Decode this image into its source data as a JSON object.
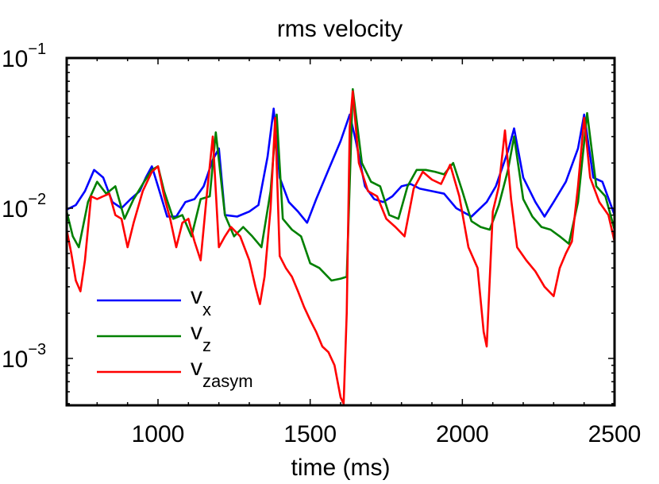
{
  "chart_data": {
    "type": "line",
    "title": "rms velocity",
    "xlabel": "time (ms)",
    "ylabel": "",
    "xlim": [
      700,
      2500
    ],
    "ylim": [
      0.0005,
      0.1
    ],
    "yscale": "log",
    "xticks": [
      1000,
      1500,
      2000,
      2500
    ],
    "xtick_labels": [
      "1000",
      "1500",
      "2000",
      "2500"
    ],
    "ytick_labels": [
      {
        "base": "10",
        "exp": "−1",
        "value": 0.1
      },
      {
        "base": "10",
        "exp": "−2",
        "value": 0.01
      },
      {
        "base": "10",
        "exp": "−3",
        "value": 0.001
      }
    ],
    "legend_position": "bottom-left",
    "series": [
      {
        "name": "v_x",
        "label_main": "v",
        "label_sub": "x",
        "color": "#0000ff",
        "x": [
          700,
          730,
          760,
          790,
          820,
          850,
          880,
          910,
          940,
          960,
          980,
          1000,
          1030,
          1060,
          1090,
          1120,
          1150,
          1180,
          1200,
          1220,
          1260,
          1300,
          1330,
          1360,
          1380,
          1400,
          1430,
          1460,
          1490,
          1520,
          1560,
          1600,
          1630,
          1650,
          1680,
          1710,
          1740,
          1770,
          1800,
          1830,
          1860,
          1900,
          1940,
          1980,
          2030,
          2080,
          2110,
          2150,
          2170,
          2200,
          2240,
          2270,
          2300,
          2340,
          2380,
          2400,
          2430,
          2460,
          2500
        ],
        "y": [
          0.0098,
          0.0105,
          0.013,
          0.018,
          0.016,
          0.011,
          0.01,
          0.0115,
          0.013,
          0.016,
          0.019,
          0.014,
          0.0088,
          0.0088,
          0.011,
          0.0115,
          0.014,
          0.021,
          0.025,
          0.009,
          0.0088,
          0.0095,
          0.0105,
          0.022,
          0.046,
          0.016,
          0.011,
          0.0095,
          0.008,
          0.0115,
          0.018,
          0.028,
          0.042,
          0.028,
          0.014,
          0.0115,
          0.011,
          0.012,
          0.014,
          0.0145,
          0.0135,
          0.013,
          0.0125,
          0.01,
          0.0088,
          0.011,
          0.014,
          0.024,
          0.034,
          0.016,
          0.011,
          0.0088,
          0.011,
          0.015,
          0.025,
          0.042,
          0.016,
          0.015,
          0.009
        ]
      },
      {
        "name": "v_z",
        "label_main": "v",
        "label_sub": "z",
        "color": "#008000",
        "x": [
          700,
          720,
          740,
          770,
          800,
          830,
          860,
          890,
          920,
          950,
          980,
          1000,
          1020,
          1050,
          1080,
          1110,
          1140,
          1170,
          1190,
          1220,
          1250,
          1280,
          1310,
          1340,
          1370,
          1390,
          1410,
          1440,
          1470,
          1500,
          1530,
          1570,
          1600,
          1620,
          1640,
          1670,
          1700,
          1730,
          1760,
          1790,
          1820,
          1850,
          1880,
          1910,
          1940,
          1970,
          2000,
          2030,
          2060,
          2090,
          2120,
          2150,
          2170,
          2200,
          2230,
          2260,
          2290,
          2320,
          2350,
          2380,
          2410,
          2440,
          2470,
          2500
        ],
        "y": [
          0.0095,
          0.0065,
          0.0055,
          0.011,
          0.015,
          0.0125,
          0.014,
          0.0085,
          0.0115,
          0.0145,
          0.018,
          0.019,
          0.013,
          0.0085,
          0.009,
          0.0065,
          0.0115,
          0.012,
          0.032,
          0.009,
          0.0065,
          0.0075,
          0.0065,
          0.0055,
          0.013,
          0.042,
          0.0085,
          0.0072,
          0.0065,
          0.0043,
          0.004,
          0.0033,
          0.0034,
          0.0035,
          0.062,
          0.02,
          0.015,
          0.014,
          0.009,
          0.0085,
          0.014,
          0.018,
          0.018,
          0.0175,
          0.0168,
          0.02,
          0.013,
          0.0082,
          0.0075,
          0.0072,
          0.0105,
          0.018,
          0.03,
          0.0115,
          0.0088,
          0.0075,
          0.0072,
          0.0065,
          0.0058,
          0.011,
          0.043,
          0.014,
          0.012,
          0.0072
        ]
      },
      {
        "name": "v_zasym",
        "label_main": "v",
        "label_sub": "zasym",
        "color": "#ff0000",
        "x": [
          700,
          715,
          730,
          745,
          760,
          780,
          800,
          820,
          840,
          860,
          880,
          900,
          920,
          950,
          980,
          1000,
          1020,
          1040,
          1060,
          1080,
          1100,
          1120,
          1140,
          1160,
          1180,
          1200,
          1220,
          1240,
          1270,
          1300,
          1320,
          1335,
          1350,
          1370,
          1385,
          1400,
          1420,
          1440,
          1460,
          1480,
          1500,
          1520,
          1540,
          1560,
          1580,
          1600,
          1610,
          1620,
          1630,
          1640,
          1660,
          1690,
          1720,
          1750,
          1780,
          1810,
          1840,
          1870,
          1900,
          1930,
          1960,
          1990,
          2020,
          2050,
          2070,
          2080,
          2100,
          2120,
          2140,
          2160,
          2180,
          2210,
          2240,
          2270,
          2300,
          2320,
          2340,
          2360,
          2380,
          2400,
          2420,
          2450,
          2480,
          2500
        ],
        "y": [
          0.0072,
          0.005,
          0.0033,
          0.0028,
          0.0045,
          0.012,
          0.0115,
          0.012,
          0.0125,
          0.009,
          0.0085,
          0.0055,
          0.008,
          0.013,
          0.0175,
          0.019,
          0.012,
          0.0085,
          0.0055,
          0.008,
          0.0085,
          0.006,
          0.0045,
          0.012,
          0.03,
          0.0055,
          0.0065,
          0.0075,
          0.0065,
          0.0045,
          0.003,
          0.0023,
          0.0035,
          0.01,
          0.04,
          0.0048,
          0.004,
          0.0035,
          0.0028,
          0.0022,
          0.0018,
          0.0015,
          0.0012,
          0.0011,
          0.0009,
          0.00055,
          0.0005,
          0.002,
          0.035,
          0.06,
          0.02,
          0.013,
          0.012,
          0.0085,
          0.0075,
          0.0065,
          0.0135,
          0.0175,
          0.0155,
          0.0145,
          0.0195,
          0.012,
          0.0055,
          0.004,
          0.0015,
          0.0012,
          0.0095,
          0.014,
          0.033,
          0.0115,
          0.0055,
          0.0045,
          0.0038,
          0.003,
          0.0026,
          0.004,
          0.005,
          0.006,
          0.014,
          0.04,
          0.016,
          0.011,
          0.009,
          0.006
        ]
      }
    ]
  }
}
